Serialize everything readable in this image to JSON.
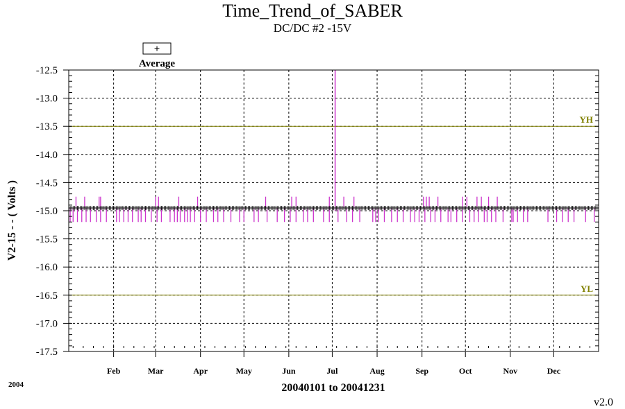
{
  "chart_data": {
    "type": "line",
    "title": "Time_Trend_of_SABER",
    "subtitle": "DC/DC #2 -15V",
    "ylabel": "V2-15  - - ( Volts )",
    "xlabel": "20040101 to 20041231",
    "year_label": "2004",
    "version": "v2.0",
    "legend": {
      "symbol": "+",
      "label": "Average",
      "placement": "top-left"
    },
    "ylim": [
      -17.5,
      -12.5
    ],
    "yticks": [
      -12.5,
      -13.0,
      -13.5,
      -14.0,
      -14.5,
      -15.0,
      -15.5,
      -16.0,
      -16.5,
      -17.0,
      -17.5
    ],
    "ytick_labels": [
      "-12.5",
      "-13.0",
      "-13.5",
      "-14.0",
      "-14.5",
      "-15.0",
      "-15.5",
      "-16.0",
      "-16.5",
      "-17.0",
      "-17.5"
    ],
    "xlim_days": [
      0,
      366
    ],
    "months": [
      {
        "label": "Feb",
        "day": 31
      },
      {
        "label": "Mar",
        "day": 60
      },
      {
        "label": "Apr",
        "day": 91
      },
      {
        "label": "May",
        "day": 121
      },
      {
        "label": "Jun",
        "day": 152
      },
      {
        "label": "Jul",
        "day": 182
      },
      {
        "label": "Aug",
        "day": 213
      },
      {
        "label": "Sep",
        "day": 244
      },
      {
        "label": "Oct",
        "day": 274
      },
      {
        "label": "Nov",
        "day": 305
      },
      {
        "label": "Dec",
        "day": 335
      }
    ],
    "limits": [
      {
        "name": "YH",
        "value": -13.5,
        "color": "#808000"
      },
      {
        "name": "YL",
        "value": -16.5,
        "color": "#808000"
      }
    ],
    "average_value": -14.95,
    "average_color": "#000000",
    "range_color": "#cc33cc",
    "spike": {
      "day": 184,
      "min": -15.0,
      "max": -12.5
    },
    "upper_excursions_days": [
      5,
      11,
      21,
      22,
      60,
      62,
      76,
      89,
      136,
      154,
      157,
      180,
      190,
      197,
      245,
      247,
      249,
      255,
      272,
      275,
      282,
      285,
      290,
      296
    ],
    "lower_excursions_days": [
      1,
      3,
      6,
      9,
      12,
      15,
      19,
      22,
      26,
      33,
      35,
      38,
      41,
      44,
      48,
      50,
      53,
      57,
      61,
      64,
      70,
      73,
      75,
      77,
      80,
      82,
      84,
      87,
      91,
      95,
      100,
      103,
      107,
      112,
      118,
      121,
      128,
      131,
      137,
      144,
      149,
      153,
      157,
      162,
      165,
      169,
      176,
      180,
      186,
      192,
      196,
      201,
      210,
      212,
      214,
      218,
      223,
      227,
      231,
      236,
      239,
      242,
      246,
      250,
      253,
      257,
      262,
      264,
      268,
      272,
      277,
      280,
      283,
      287,
      289,
      292,
      295,
      300,
      306,
      307,
      310,
      314,
      317,
      331,
      337,
      341,
      345,
      349,
      357,
      363
    ]
  }
}
